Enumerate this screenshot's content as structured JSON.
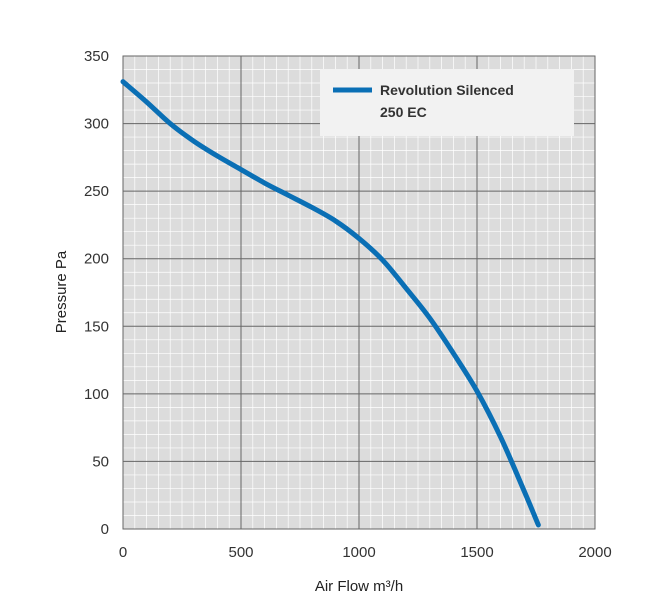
{
  "chart_data": {
    "type": "line",
    "xlabel": "Air Flow m³/h",
    "ylabel": "Pressure Pa",
    "xlim": [
      0,
      2000
    ],
    "ylim": [
      0,
      350
    ],
    "x_ticks": [
      "0",
      "500",
      "1000",
      "1500",
      "2000"
    ],
    "y_ticks": [
      "0",
      "50",
      "100",
      "150",
      "200",
      "250",
      "300",
      "350"
    ],
    "grid": true,
    "legend_position": "top-right",
    "series": [
      {
        "name_line1": "Revolution Silenced",
        "name_line2": "250 EC",
        "color": "#0a6fb5",
        "x": [
          0,
          100,
          200,
          300,
          400,
          500,
          600,
          700,
          800,
          900,
          1000,
          1100,
          1200,
          1300,
          1400,
          1500,
          1600,
          1700,
          1760
        ],
        "y": [
          331,
          316,
          300,
          287,
          276,
          266,
          256,
          247,
          238,
          228,
          215,
          199,
          178,
          156,
          130,
          102,
          68,
          28,
          3
        ]
      }
    ]
  }
}
